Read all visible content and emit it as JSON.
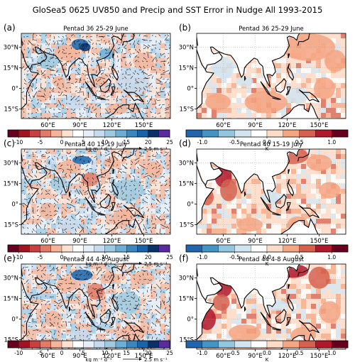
{
  "figure": {
    "title": "GloSea5 0625 UV850 and Precip and SST Error in Nudge All 1993-2015"
  },
  "chart_data": [
    {
      "type": "heatmap",
      "panel_label": "(a)",
      "title": "Pentad 36 25-29 June",
      "variable": "precip_uv850",
      "lon_ticks": [
        "60°E",
        "90°E",
        "120°E",
        "150°E"
      ],
      "lat_ticks": [
        "30°N",
        "15°N",
        "0°",
        "15°S"
      ]
    },
    {
      "type": "heatmap",
      "panel_label": "(b)",
      "title": "Pentad 36 25-29 June",
      "variable": "sst",
      "lon_ticks": [
        "60°E",
        "90°E",
        "120°E",
        "150°E"
      ],
      "lat_ticks": [
        "30°N",
        "15°N",
        "0°",
        "15°S"
      ]
    },
    {
      "type": "heatmap",
      "panel_label": "(c)",
      "title": "Pentad 40 15-19 July",
      "variable": "precip_uv850",
      "lon_ticks": [
        "60°E",
        "90°E",
        "120°E",
        "150°E"
      ],
      "lat_ticks": [
        "30°N",
        "15°N",
        "0°",
        "15°S"
      ]
    },
    {
      "type": "heatmap",
      "panel_label": "(d)",
      "title": "Pentad 40 15-19 July",
      "variable": "sst",
      "lon_ticks": [
        "60°E",
        "90°E",
        "120°E",
        "150°E"
      ],
      "lat_ticks": [
        "30°N",
        "15°N",
        "0°",
        "15°S"
      ]
    },
    {
      "type": "heatmap",
      "panel_label": "(e)",
      "title": "Pentad 44 4-8 August",
      "variable": "precip_uv850",
      "lon_ticks": [
        "60°E",
        "90°E",
        "120°E",
        "150°E"
      ],
      "lat_ticks": [
        "30°N",
        "15°N",
        "0°",
        "15°S"
      ]
    },
    {
      "type": "heatmap",
      "panel_label": "(f)",
      "title": "Pentad 44 4-8 August",
      "variable": "sst",
      "lon_ticks": [
        "60°E",
        "90°E",
        "120°E",
        "150°E"
      ],
      "lat_ticks": [
        "30°N",
        "15°N",
        "0°",
        "15°S"
      ]
    }
  ],
  "colorbars": {
    "precip": {
      "tick_labels": [
        "-10",
        "-5",
        "0",
        "5",
        "10",
        "15",
        "20",
        "25"
      ],
      "tick_values": [
        -10,
        -5,
        0,
        5,
        10,
        15,
        20,
        25
      ],
      "range": [
        -12.5,
        25
      ],
      "unit": "kg m⁻² d⁻¹",
      "vector_key": "2.5 m s⁻¹",
      "colors": [
        "#67001f",
        "#a3121f",
        "#c83f3f",
        "#e27b66",
        "#f5b499",
        "#fde0cf",
        "#ffffff",
        "#e6eff8",
        "#c5dbef",
        "#9ecae1",
        "#6aaed6",
        "#3a87c0",
        "#1863aa",
        "#08306b",
        "#5b2a9e"
      ]
    },
    "sst": {
      "tick_labels": [
        "-1.0",
        "-0.5",
        "0.0",
        "0.5",
        "1.0"
      ],
      "tick_values": [
        -1.0,
        -0.5,
        0.0,
        0.5,
        1.0
      ],
      "range": [
        -1.25,
        1.25
      ],
      "unit": "K",
      "colors": [
        "#2166ac",
        "#4393c3",
        "#92c5de",
        "#d1e5f0",
        "#ffffff",
        "#fddbc7",
        "#f4a582",
        "#d6604d",
        "#b2182b",
        "#67001f"
      ]
    }
  }
}
